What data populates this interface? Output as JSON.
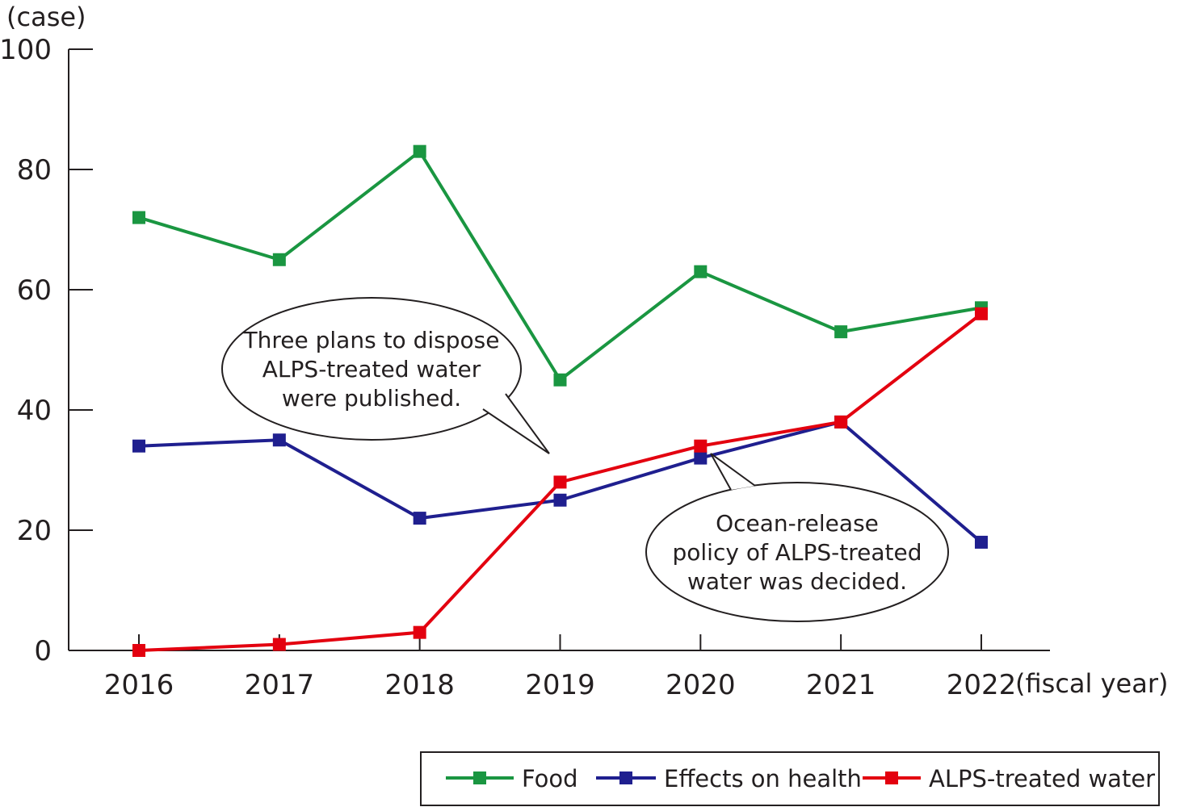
{
  "chart_data": {
    "type": "line",
    "ylabel": "(case)",
    "xlabel": "(fiscal year)",
    "ylim": [
      0,
      100
    ],
    "yticks": [
      0,
      20,
      40,
      60,
      80,
      100
    ],
    "grid": false,
    "legend_position": "bottom-right",
    "categories": [
      "2016",
      "2017",
      "2018",
      "2019",
      "2020",
      "2021",
      "2022"
    ],
    "series": [
      {
        "name": "Food",
        "color": "#1a9641",
        "values": [
          72,
          65,
          83,
          45,
          63,
          53,
          57
        ]
      },
      {
        "name": "Effects on health",
        "color": "#1f1f8f",
        "values": [
          34,
          35,
          22,
          25,
          32,
          38,
          18
        ]
      },
      {
        "name": "ALPS-treated water",
        "color": "#e3000f",
        "values": [
          0,
          1,
          3,
          28,
          34,
          38,
          56
        ]
      }
    ],
    "annotations": [
      {
        "lines": [
          "Three plans to dispose",
          "ALPS-treated water",
          "were published."
        ],
        "points_to": {
          "x": "2019",
          "y": 28
        }
      },
      {
        "lines": [
          "Ocean-release",
          "policy of ALPS-treated",
          "water was decided."
        ],
        "points_to": {
          "x": "2020",
          "y": 33
        }
      }
    ]
  }
}
